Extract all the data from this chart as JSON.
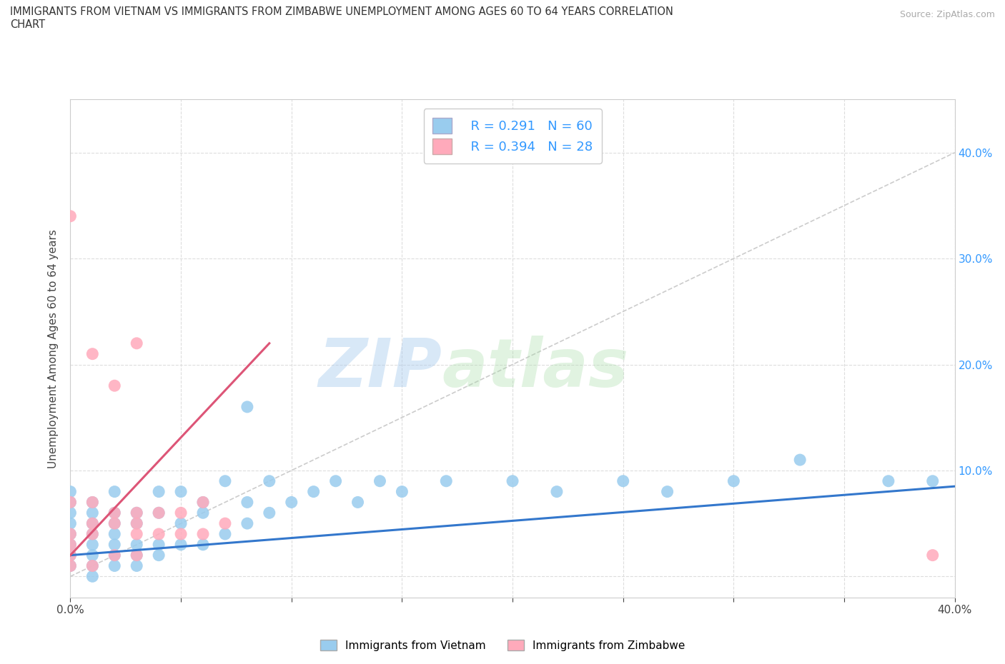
{
  "title": "IMMIGRANTS FROM VIETNAM VS IMMIGRANTS FROM ZIMBABWE UNEMPLOYMENT AMONG AGES 60 TO 64 YEARS CORRELATION\nCHART",
  "source": "Source: ZipAtlas.com",
  "ylabel": "Unemployment Among Ages 60 to 64 years",
  "xlim": [
    0.0,
    0.4
  ],
  "ylim": [
    -0.02,
    0.45
  ],
  "xticks": [
    0.0,
    0.05,
    0.1,
    0.15,
    0.2,
    0.25,
    0.3,
    0.35,
    0.4
  ],
  "yticks": [
    0.0,
    0.1,
    0.2,
    0.3,
    0.4
  ],
  "color_vietnam": "#99CCEE",
  "color_zimbabwe": "#FFAABB",
  "line_color_vietnam": "#3377CC",
  "line_color_zimbabwe": "#DD5577",
  "diagonal_color": "#CCCCCC",
  "vietnam_x": [
    0.0,
    0.0,
    0.0,
    0.0,
    0.0,
    0.0,
    0.0,
    0.0,
    0.01,
    0.01,
    0.01,
    0.01,
    0.01,
    0.01,
    0.01,
    0.01,
    0.02,
    0.02,
    0.02,
    0.02,
    0.02,
    0.02,
    0.02,
    0.03,
    0.03,
    0.03,
    0.03,
    0.03,
    0.04,
    0.04,
    0.04,
    0.04,
    0.05,
    0.05,
    0.05,
    0.06,
    0.06,
    0.06,
    0.07,
    0.07,
    0.08,
    0.08,
    0.08,
    0.09,
    0.09,
    0.1,
    0.11,
    0.12,
    0.13,
    0.14,
    0.15,
    0.17,
    0.2,
    0.22,
    0.25,
    0.27,
    0.3,
    0.33,
    0.37,
    0.39
  ],
  "vietnam_y": [
    0.01,
    0.02,
    0.03,
    0.04,
    0.05,
    0.06,
    0.07,
    0.08,
    0.0,
    0.01,
    0.02,
    0.03,
    0.04,
    0.05,
    0.06,
    0.07,
    0.01,
    0.02,
    0.03,
    0.04,
    0.05,
    0.06,
    0.08,
    0.01,
    0.02,
    0.03,
    0.05,
    0.06,
    0.02,
    0.03,
    0.06,
    0.08,
    0.03,
    0.05,
    0.08,
    0.03,
    0.06,
    0.07,
    0.04,
    0.09,
    0.05,
    0.07,
    0.16,
    0.06,
    0.09,
    0.07,
    0.08,
    0.09,
    0.07,
    0.09,
    0.08,
    0.09,
    0.09,
    0.08,
    0.09,
    0.08,
    0.09,
    0.11,
    0.09,
    0.09
  ],
  "zimbabwe_x": [
    0.0,
    0.0,
    0.0,
    0.0,
    0.0,
    0.0,
    0.01,
    0.01,
    0.01,
    0.01,
    0.01,
    0.02,
    0.02,
    0.02,
    0.02,
    0.03,
    0.03,
    0.03,
    0.03,
    0.03,
    0.04,
    0.04,
    0.05,
    0.05,
    0.06,
    0.06,
    0.07,
    0.39
  ],
  "zimbabwe_y": [
    0.01,
    0.02,
    0.03,
    0.04,
    0.07,
    0.34,
    0.01,
    0.04,
    0.05,
    0.07,
    0.21,
    0.02,
    0.05,
    0.06,
    0.18,
    0.02,
    0.04,
    0.05,
    0.06,
    0.22,
    0.04,
    0.06,
    0.04,
    0.06,
    0.04,
    0.07,
    0.05,
    0.02
  ],
  "background_color": "#FFFFFF",
  "grid_color": "#DDDDDD",
  "watermark_zip": "ZIP",
  "watermark_atlas": "atlas",
  "legend_r_vietnam": "R = 0.291",
  "legend_n_vietnam": "N = 60",
  "legend_r_zimbabwe": "R = 0.394",
  "legend_n_zimbabwe": "N = 28"
}
